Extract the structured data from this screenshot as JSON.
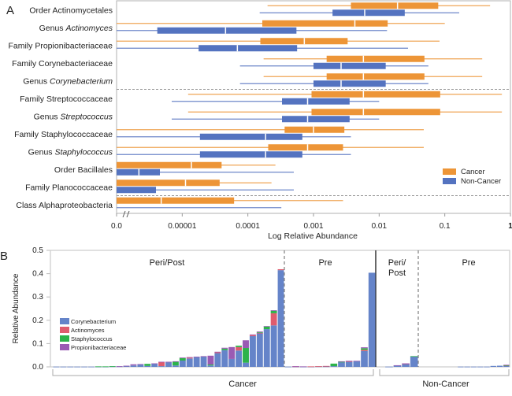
{
  "chart_data": [
    {
      "panel_label": "A",
      "type": "boxplot",
      "xlabel": "Log Relative Abundance",
      "xscale": "log",
      "xlim_log10": [
        -6,
        0
      ],
      "x_ticks": [
        {
          "label": "0.0",
          "log10": -6
        },
        {
          "label": "0.00001",
          "log10": -5
        },
        {
          "label": "0.0001",
          "log10": -4
        },
        {
          "label": "0.001",
          "log10": -3
        },
        {
          "label": "0.01",
          "log10": -2
        },
        {
          "label": "0.1",
          "log10": -1
        },
        {
          "label": "1",
          "log10": 0
        }
      ],
      "axis_break": true,
      "legend": {
        "position": "bottom-right",
        "entries": [
          {
            "name": "Cancer",
            "color": "#ED9537"
          },
          {
            "name": "Non-Cancer",
            "color": "#5473C0"
          }
        ]
      },
      "group_separators_after": [
        4,
        10
      ],
      "taxa": [
        {
          "rank": "Order",
          "name": "Actinomycetales",
          "italic": false,
          "cancer": {
            "min": -3.7,
            "q1": -2.43,
            "median": -1.72,
            "q3": -1.1,
            "max": -0.31
          },
          "non_cancer": {
            "min": -3.82,
            "q1": -2.71,
            "median": -2.22,
            "q3": -1.61,
            "max": -0.78
          }
        },
        {
          "rank": "Genus",
          "name": "Actinomyces",
          "italic": true,
          "cancer": {
            "min": -6.0,
            "q1": -3.78,
            "median": -2.37,
            "q3": -1.87,
            "max": -1.0
          },
          "non_cancer": {
            "min": -6.0,
            "q1": -5.38,
            "median": -4.34,
            "q3": -3.26,
            "max": -1.88
          }
        },
        {
          "rank": "Family",
          "name": "Propionibacteriaceae",
          "italic": false,
          "cancer": {
            "min": -6.0,
            "q1": -3.81,
            "median": -3.14,
            "q3": -2.48,
            "max": -1.08
          },
          "non_cancer": {
            "min": -6.0,
            "q1": -4.75,
            "median": -4.16,
            "q3": -3.25,
            "max": -1.56
          }
        },
        {
          "rank": "Family",
          "name": "Corynebacteriaceae",
          "italic": false,
          "cancer": {
            "min": -3.76,
            "q1": -2.8,
            "median": -2.24,
            "q3": -1.31,
            "max": -0.43
          },
          "non_cancer": {
            "min": -4.12,
            "q1": -3.0,
            "median": -2.58,
            "q3": -1.9,
            "max": -1.25
          }
        },
        {
          "rank": "Genus",
          "name": "Corynebacterium",
          "italic": true,
          "cancer": {
            "min": -3.76,
            "q1": -2.8,
            "median": -2.24,
            "q3": -1.31,
            "max": -0.43
          },
          "non_cancer": {
            "min": -4.12,
            "q1": -3.0,
            "median": -2.58,
            "q3": -1.9,
            "max": -1.25
          }
        },
        {
          "rank": "Family",
          "name": "Streptococcaceae",
          "italic": false,
          "cancer": {
            "min": -4.91,
            "q1": -3.03,
            "median": -2.24,
            "q3": -1.07,
            "max": -0.13
          },
          "non_cancer": {
            "min": -5.16,
            "q1": -3.48,
            "median": -3.09,
            "q3": -2.45,
            "max": -2.0
          }
        },
        {
          "rank": "Genus",
          "name": "Streptococcus",
          "italic": true,
          "cancer": {
            "min": -4.91,
            "q1": -3.03,
            "median": -2.24,
            "q3": -1.07,
            "max": -0.13
          },
          "non_cancer": {
            "min": -5.16,
            "q1": -3.48,
            "median": -3.09,
            "q3": -2.45,
            "max": -2.0
          }
        },
        {
          "rank": "Family",
          "name": "Staphylococcaceae",
          "italic": false,
          "cancer": {
            "min": -6.0,
            "q1": -3.44,
            "median": -3.0,
            "q3": -2.53,
            "max": -1.32
          },
          "non_cancer": {
            "min": -6.0,
            "q1": -4.73,
            "median": -3.73,
            "q3": -3.17,
            "max": -2.43
          }
        },
        {
          "rank": "Genus",
          "name": "Staphylococcus",
          "italic": true,
          "cancer": {
            "min": -6.0,
            "q1": -3.69,
            "median": -3.09,
            "q3": -2.55,
            "max": -1.32
          },
          "non_cancer": {
            "min": -6.0,
            "q1": -4.73,
            "median": -3.73,
            "q3": -3.17,
            "max": -2.43
          }
        },
        {
          "rank": "Order",
          "name": "Bacillales",
          "italic": false,
          "cancer": {
            "min": -6.0,
            "q1": -6.0,
            "median": -4.86,
            "q3": -4.4,
            "max": -3.58
          },
          "non_cancer": {
            "min": -6.0,
            "q1": -6.0,
            "median": -5.66,
            "q3": -5.34,
            "max": -3.3
          }
        },
        {
          "rank": "Family",
          "name": "Planococcaceae",
          "italic": false,
          "cancer": {
            "min": -6.0,
            "q1": -6.0,
            "median": -4.95,
            "q3": -4.43,
            "max": -3.64
          },
          "non_cancer": {
            "min": -6.0,
            "q1": -6.0,
            "median": -5.4,
            "q3": -5.4,
            "max": -3.3
          }
        },
        {
          "rank": "Class",
          "name": "Alphaproteobacteria",
          "italic": false,
          "cancer": {
            "min": -6.0,
            "q1": -6.0,
            "median": -5.32,
            "q3": -4.21,
            "max": -2.55
          },
          "non_cancer": {
            "min": -6.0,
            "q1": -6.0,
            "median": -6.0,
            "q3": -6.0,
            "max": -3.49
          }
        }
      ]
    },
    {
      "panel_label": "B",
      "type": "bar",
      "stacked": true,
      "ylabel": "Relative Abundance",
      "ylim": [
        0,
        0.5
      ],
      "y_ticks": [
        "0.0",
        "0.1",
        "0.2",
        "0.3",
        "0.4",
        "0.5"
      ],
      "legend": {
        "position": "left",
        "entries": [
          {
            "name": "Corynebacterium",
            "color": "#6584C9"
          },
          {
            "name": "Actinomyces",
            "color": "#E05C6E"
          },
          {
            "name": "Staphylococcus",
            "color": "#2DB34A"
          },
          {
            "name": "Propionibacteriaceae",
            "color": "#9A5BB3"
          }
        ]
      },
      "series_order": [
        "Corynebacterium",
        "Actinomyces",
        "Staphylococcus",
        "Propionibacteriaceae"
      ],
      "groups": [
        {
          "name": "Cancer",
          "subgroups": [
            {
              "name": "Peri/Post",
              "bars": [
                [
                  0.001,
                  0,
                  0,
                  0
                ],
                [
                  0.001,
                  0,
                  0,
                  0
                ],
                [
                  0.001,
                  0,
                  0,
                  0
                ],
                [
                  0.001,
                  0,
                  0,
                  0
                ],
                [
                  0.001,
                  0,
                  0,
                  0
                ],
                [
                  0.001,
                  0,
                  0,
                  0
                ],
                [
                  0.001,
                  0,
                  0.001,
                  0
                ],
                [
                  0.001,
                  0,
                  0.001,
                  0
                ],
                [
                  0.002,
                  0,
                  0.001,
                  0
                ],
                [
                  0.002,
                  0,
                  0,
                  0.001
                ],
                [
                  0.004,
                  0,
                  0,
                  0.001
                ],
                [
                  0.006,
                  0,
                  0,
                  0.005
                ],
                [
                  0.011,
                  0,
                  0,
                  0.001
                ],
                [
                  0.004,
                  0,
                  0.009,
                  0
                ],
                [
                  0.014,
                  0,
                  0,
                  0.001
                ],
                [
                  0.003,
                  0.018,
                  0,
                  0.001
                ],
                [
                  0.02,
                  0,
                  0,
                  0.002
                ],
                [
                  0.006,
                  0,
                  0.017,
                  0.001
                ],
                [
                  0.027,
                  0,
                  0.011,
                  0.002
                ],
                [
                  0.036,
                  0.004,
                  0,
                  0.002
                ],
                [
                  0.042,
                  0,
                  0,
                  0.002
                ],
                [
                  0.044,
                  0,
                  0,
                  0.002
                ],
                [
                  0.006,
                  0,
                  0.004,
                  0.038
                ],
                [
                  0.059,
                  0.004,
                  0,
                  0.002
                ],
                [
                  0.072,
                  0,
                  0.006,
                  0.004
                ],
                [
                  0.034,
                  0,
                  0,
                  0.051
                ],
                [
                  0.07,
                  0.015,
                  0.006,
                  0
                ],
                [
                  0.018,
                  0,
                  0.063,
                  0.033
                ],
                [
                  0.132,
                  0.005,
                  0,
                  0.002
                ],
                [
                  0.145,
                  0.001,
                  0.003,
                  0.003
                ],
                [
                  0.162,
                  0,
                  0.012,
                  0.001
                ],
                [
                  0.178,
                  0.052,
                  0.011,
                  0.002
                ],
                [
                  0.415,
                  0.004,
                  0,
                  0
                ]
              ]
            },
            {
              "name": "Pre",
              "bars": [
                [
                  0.001,
                  0,
                  0,
                  0
                ],
                [
                  0.001,
                  0.001,
                  0,
                  0.001
                ],
                [
                  0.001,
                  0,
                  0,
                  0.001
                ],
                [
                  0.001,
                  0.001,
                  0,
                  0
                ],
                [
                  0.002,
                  0.001,
                  0,
                  0
                ],
                [
                  0.002,
                  0.002,
                  0,
                  0
                ],
                [
                  0.003,
                  0,
                  0.011,
                  0
                ],
                [
                  0.02,
                  0,
                  0.002,
                  0.002
                ],
                [
                  0.022,
                  0.002,
                  0,
                  0.002
                ],
                [
                  0.025,
                  0,
                  0,
                  0.001
                ],
                [
                  0.068,
                  0.005,
                  0.007,
                  0.004
                ],
                [
                  0.404,
                  0,
                  0,
                  0
                ]
              ]
            }
          ]
        },
        {
          "name": "Non-Cancer",
          "subgroups": [
            {
              "name": "Peri/Post",
              "bars": [
                [
                  0.0,
                  0,
                  0,
                  0
                ],
                [
                  0.001,
                  0,
                  0,
                  0
                ],
                [
                  0.006,
                  0,
                  0,
                  0.001
                ],
                [
                  0.012,
                  0.002,
                  0,
                  0.001
                ],
                [
                  0.044,
                  0,
                  0.002,
                  0
                ]
              ]
            },
            {
              "name": "Pre",
              "bars": [
                [
                  0,
                  0,
                  0,
                  0
                ],
                [
                  0,
                  0,
                  0,
                  0
                ],
                [
                  0,
                  0,
                  0,
                  0
                ],
                [
                  0,
                  0,
                  0,
                  0
                ],
                [
                  0,
                  0,
                  0,
                  0
                ],
                [
                  0,
                  0,
                  0,
                  0
                ],
                [
                  0.001,
                  0,
                  0,
                  0
                ],
                [
                  0.001,
                  0,
                  0,
                  0
                ],
                [
                  0.001,
                  0,
                  0,
                  0
                ],
                [
                  0.001,
                  0,
                  0,
                  0
                ],
                [
                  0.001,
                  0,
                  0,
                  0
                ],
                [
                  0.004,
                  0,
                  0,
                  0
                ],
                [
                  0.005,
                  0,
                  0,
                  0
                ],
                [
                  0.005,
                  0.001,
                  0.001,
                  0.002
                ]
              ]
            }
          ]
        }
      ]
    }
  ]
}
